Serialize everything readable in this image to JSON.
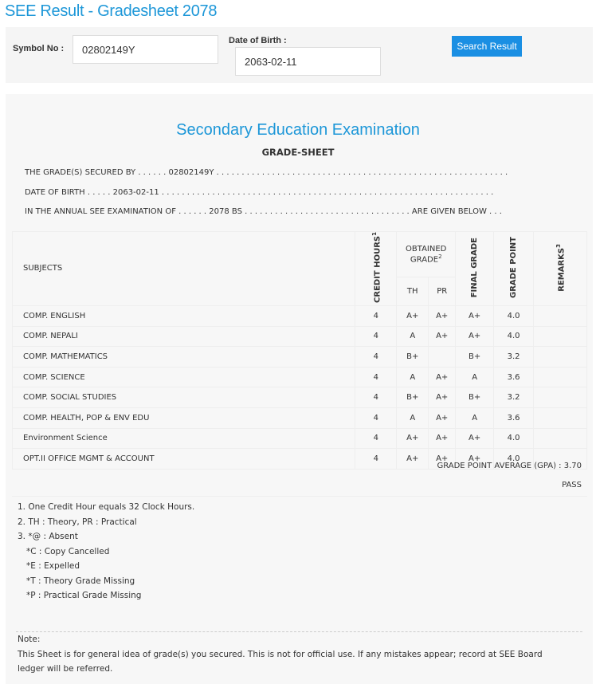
{
  "page_title": "SEE Result - Gradesheet 2078",
  "form": {
    "symbol_label": "Symbol No :",
    "symbol_value": "02802149Y",
    "dob_label": "Date of Birth :",
    "dob_value": "2063-02-11",
    "search_button": "Search Result"
  },
  "sheet": {
    "heading": "Secondary Education Examination",
    "subheading": "GRADE-SHEET",
    "info_lines": [
      "THE GRADE(S) SECURED BY . . . . . . 02802149Y . . . . . . . . . . . . . . . . . . . . . . . . . . . . . . . . . . . . . . . . . . . . . . . . . . . . . . . . . .",
      "DATE OF BIRTH . . . . . 2063-02-11 . . . . . . . . . . . . . . . . . . . . . . . . . . . . . . . . . . . . . . . . . . . . . . . . . . . . . . . . . . . . . . . . . .",
      "IN THE ANNUAL SEE EXAMINATION OF . . . . . . 2078 BS . . . . . . . . . . . . . . . . . . . . . . . . . . . . . . . . . ARE GIVEN BELOW . . ."
    ],
    "headers": {
      "subjects": "SUBJECTS",
      "credit": "CREDIT HOURS",
      "credit_sup": "1",
      "obtained": "OBTAINED GRADE",
      "obtained_sup": "2",
      "th": "TH",
      "pr": "PR",
      "final": "FINAL GRADE",
      "gp": "GRADE POINT",
      "remarks": "REMARKS",
      "remarks_sup": "3"
    },
    "rows": [
      {
        "subject": "COMP. ENGLISH",
        "credit": "4",
        "th": "A+",
        "pr": "A+",
        "final": "A+",
        "gp": "4.0",
        "remarks": ""
      },
      {
        "subject": "COMP. NEPALI",
        "credit": "4",
        "th": "A",
        "pr": "A+",
        "final": "A+",
        "gp": "4.0",
        "remarks": ""
      },
      {
        "subject": "COMP. MATHEMATICS",
        "credit": "4",
        "th": "B+",
        "pr": "",
        "final": "B+",
        "gp": "3.2",
        "remarks": ""
      },
      {
        "subject": "COMP. SCIENCE",
        "credit": "4",
        "th": "A",
        "pr": "A+",
        "final": "A",
        "gp": "3.6",
        "remarks": ""
      },
      {
        "subject": "COMP. SOCIAL STUDIES",
        "credit": "4",
        "th": "B+",
        "pr": "A+",
        "final": "B+",
        "gp": "3.2",
        "remarks": ""
      },
      {
        "subject": "COMP. HEALTH, POP & ENV EDU",
        "credit": "4",
        "th": "A",
        "pr": "A+",
        "final": "A",
        "gp": "3.6",
        "remarks": ""
      },
      {
        "subject": "Environment Science",
        "credit": "4",
        "th": "A+",
        "pr": "A+",
        "final": "A+",
        "gp": "4.0",
        "remarks": ""
      },
      {
        "subject": "OPT.II OFFICE MGMT & ACCOUNT",
        "credit": "4",
        "th": "A+",
        "pr": "A+",
        "final": "A+",
        "gp": "4.0",
        "remarks": ""
      }
    ],
    "gpa": "GRADE POINT AVERAGE (GPA) : 3.70",
    "result": "PASS",
    "footnotes": [
      "1. One Credit Hour equals 32 Clock Hours.",
      "2. TH : Theory, PR : Practical",
      "3. *@ : Absent",
      "*C : Copy Cancelled",
      "*E : Expelled",
      "*T : Theory Grade Missing",
      "*P : Practical Grade Missing"
    ],
    "note_label": "Note:",
    "note_text": "This Sheet is for general idea of grade(s) you secured. This is not for official use. If any mistakes appear; record at SEE Board",
    "note_text2": "ledger will be referred."
  }
}
